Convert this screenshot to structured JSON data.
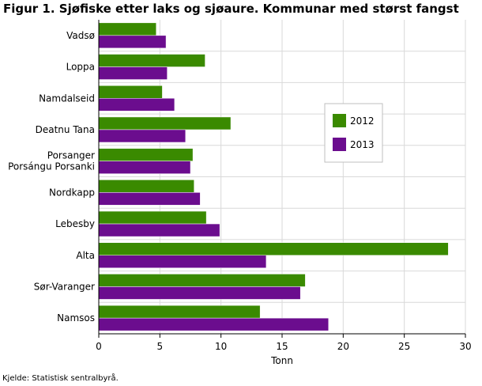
{
  "title": "Figur 1. Sjøfiske etter laks og sjøaure. Kommunar med størst fangst",
  "source": "Kjelde: Statistisk sentralbyrå.",
  "colors": {
    "2012": "#3a8a00",
    "2013": "#6b0d8e",
    "grid": "#d9d9d9",
    "axis": "#000000"
  },
  "chart_data": {
    "type": "bar",
    "orientation": "horizontal",
    "categories": [
      "Vadsø",
      "Loppa",
      "Namdalseid",
      "Deatnu Tana",
      "Porsanger Porsángu Porsanki",
      "Nordkapp",
      "Lebesby",
      "Alta",
      "Sør-Varanger",
      "Namsos"
    ],
    "category_lines": [
      [
        "Vadsø"
      ],
      [
        "Loppa"
      ],
      [
        "Namdalseid"
      ],
      [
        "Deatnu Tana"
      ],
      [
        "Porsanger",
        "Porsángu Porsanki"
      ],
      [
        "Nordkapp"
      ],
      [
        "Lebesby"
      ],
      [
        "Alta"
      ],
      [
        "Sør-Varanger"
      ],
      [
        "Namsos"
      ]
    ],
    "series": [
      {
        "name": "2012",
        "values": [
          4.7,
          8.7,
          5.2,
          10.8,
          7.7,
          7.8,
          8.8,
          28.6,
          16.9,
          13.2
        ]
      },
      {
        "name": "2013",
        "values": [
          5.5,
          5.6,
          6.2,
          7.1,
          7.5,
          8.3,
          9.9,
          13.7,
          16.5,
          18.8
        ]
      }
    ],
    "xlabel": "Tonn",
    "ylabel": "",
    "xlim": [
      0,
      30
    ],
    "xticks": [
      0,
      5,
      10,
      15,
      20,
      25,
      30
    ],
    "grid": true,
    "legend": "right"
  }
}
